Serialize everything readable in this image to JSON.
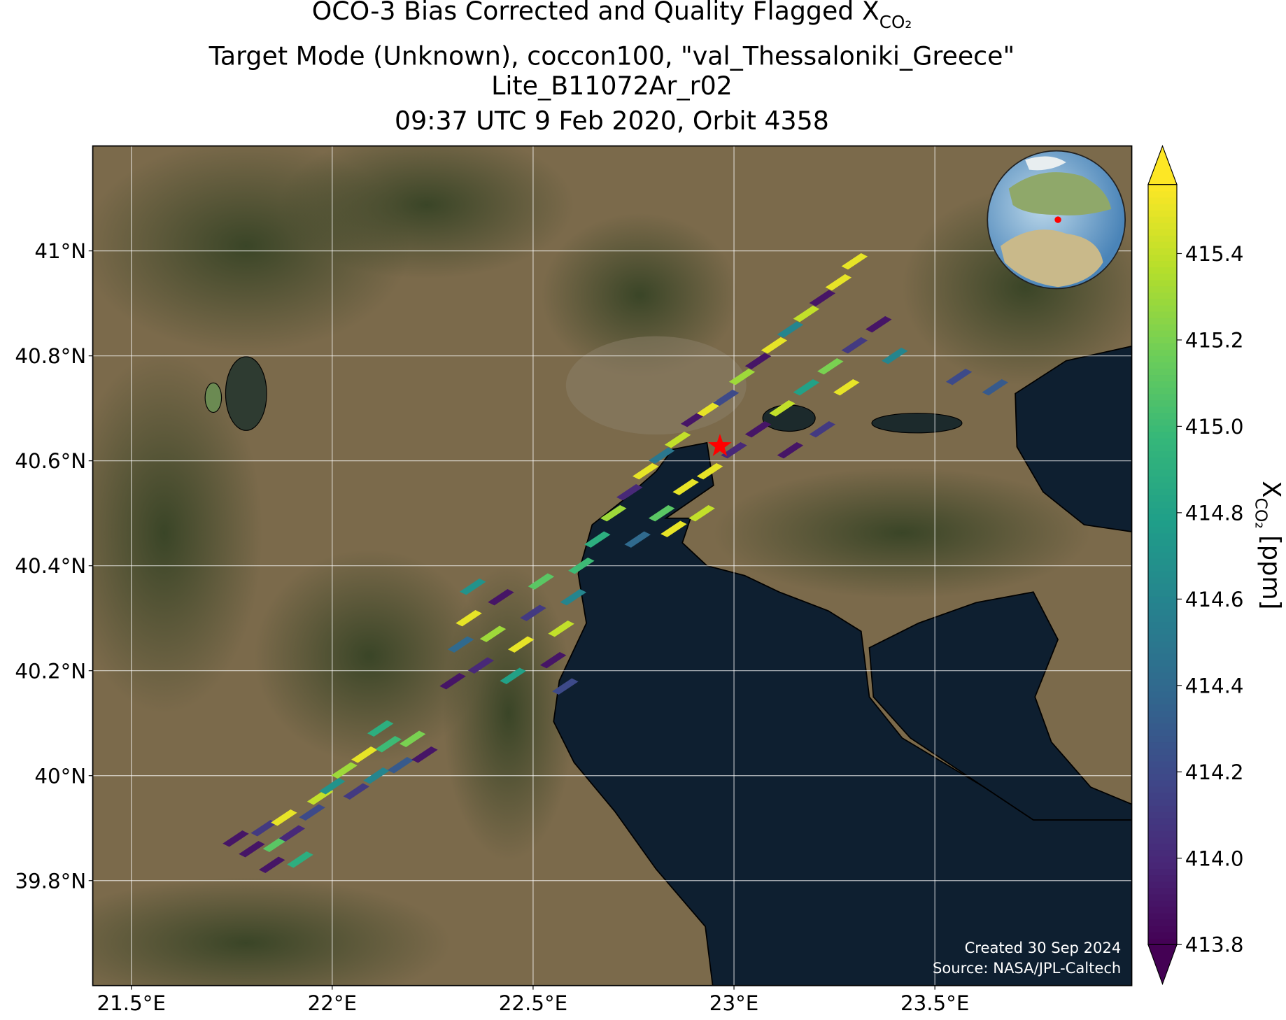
{
  "chart_data": {
    "type": "swath-map",
    "title": {
      "text": "OCO-3 Bias Corrected and Quality Flagged X",
      "subscript": "CO₂"
    },
    "subtitle_lines": [
      "Target Mode (Unknown), coccon100, \"val_Thessaloniki_Greece\"",
      "Lite_B11072Ar_r02",
      "09:37 UTC 9 Feb 2020, Orbit 4358"
    ],
    "xlim": [
      21.404,
      23.99
    ],
    "ylim": [
      39.6,
      41.2
    ],
    "xticks": [
      {
        "value": 21.5,
        "label": "21.5°E"
      },
      {
        "value": 22,
        "label": "22°E"
      },
      {
        "value": 22.5,
        "label": "22.5°E"
      },
      {
        "value": 23,
        "label": "23°E"
      },
      {
        "value": 23.5,
        "label": "23.5°E"
      }
    ],
    "yticks": [
      {
        "value": 39.8,
        "label": "39.8°N"
      },
      {
        "value": 40,
        "label": "40°N"
      },
      {
        "value": 40.2,
        "label": "40.2°N"
      },
      {
        "value": 40.4,
        "label": "40.4°N"
      },
      {
        "value": 40.6,
        "label": "40.6°N"
      },
      {
        "value": 40.8,
        "label": "40.8°N"
      },
      {
        "value": 41,
        "label": "41°N"
      }
    ],
    "grid": true,
    "colormap": [
      "#440154",
      "#482878",
      "#3e4989",
      "#31688e",
      "#26828e",
      "#1f9e89",
      "#35b779",
      "#6ece58",
      "#b5de2b",
      "#fde725"
    ],
    "clim": [
      413.8,
      415.56
    ],
    "colorbar_ticks": [
      {
        "value": 413.8,
        "label": "413.8"
      },
      {
        "value": 414,
        "label": "414.0"
      },
      {
        "value": 414.2,
        "label": "414.2"
      },
      {
        "value": 414.4,
        "label": "414.4"
      },
      {
        "value": 414.6,
        "label": "414.6"
      },
      {
        "value": 414.8,
        "label": "414.8"
      },
      {
        "value": 415,
        "label": "415.0"
      },
      {
        "value": 415.2,
        "label": "415.2"
      },
      {
        "value": 415.4,
        "label": "415.4"
      }
    ],
    "colorbar_label": {
      "symbol": "X",
      "subscript": "CO₂",
      "unit": "[ppm]"
    },
    "site": {
      "lon": 22.965,
      "lat": 40.628,
      "color": "#ff0000"
    },
    "soundings": {
      "lon": [
        21.76,
        21.8,
        21.83,
        21.86,
        21.88,
        21.9,
        21.92,
        21.95,
        21.85,
        21.97,
        22.0,
        22.03,
        22.06,
        22.08,
        22.11,
        22.14,
        22.17,
        22.2,
        22.23,
        22.12,
        22.3,
        22.32,
        22.34,
        22.37,
        22.4,
        22.42,
        22.45,
        22.47,
        22.5,
        22.52,
        22.55,
        22.57,
        22.6,
        22.62,
        22.58,
        22.35,
        22.66,
        22.7,
        22.74,
        22.78,
        22.82,
        22.86,
        22.9,
        22.94,
        22.98,
        23.02,
        23.06,
        23.1,
        23.14,
        23.18,
        23.22,
        23.26,
        23.3,
        22.76,
        22.82,
        22.88,
        22.94,
        23.0,
        23.06,
        23.12,
        23.18,
        23.24,
        23.3,
        23.36,
        23.28,
        23.22,
        23.14,
        22.92,
        22.85,
        23.4,
        23.56,
        23.65
      ],
      "lat": [
        39.88,
        39.86,
        39.9,
        39.87,
        39.92,
        39.89,
        39.84,
        39.93,
        39.83,
        39.96,
        39.98,
        40.01,
        39.97,
        40.04,
        40.0,
        40.06,
        40.02,
        40.07,
        40.04,
        40.09,
        40.18,
        40.25,
        40.3,
        40.21,
        40.27,
        40.34,
        40.19,
        40.25,
        40.31,
        40.37,
        40.22,
        40.28,
        40.34,
        40.4,
        40.17,
        40.36,
        40.45,
        40.5,
        40.54,
        40.58,
        40.61,
        40.64,
        40.68,
        40.7,
        40.72,
        40.76,
        40.79,
        40.82,
        40.85,
        40.88,
        40.91,
        40.94,
        40.98,
        40.45,
        40.5,
        40.55,
        40.58,
        40.62,
        40.66,
        40.7,
        40.74,
        40.78,
        40.82,
        40.86,
        40.74,
        40.66,
        40.62,
        40.5,
        40.47,
        40.8,
        40.76,
        40.74
      ],
      "xco2": [
        413.9,
        413.9,
        414.1,
        415.1,
        415.5,
        414.0,
        414.9,
        414.2,
        413.9,
        415.4,
        414.7,
        415.3,
        414.1,
        415.5,
        414.6,
        415.0,
        414.3,
        415.2,
        413.9,
        414.9,
        413.9,
        414.4,
        415.5,
        414.0,
        415.3,
        413.9,
        414.8,
        415.5,
        414.1,
        415.1,
        413.9,
        415.4,
        414.6,
        415.0,
        414.2,
        414.7,
        414.9,
        415.3,
        414.0,
        415.5,
        414.5,
        415.4,
        413.9,
        415.5,
        414.2,
        415.3,
        413.9,
        415.5,
        414.6,
        415.4,
        413.9,
        415.5,
        415.5,
        414.4,
        415.1,
        415.5,
        415.5,
        414.0,
        413.9,
        415.4,
        414.8,
        415.2,
        414.1,
        413.9,
        415.5,
        414.1,
        413.9,
        415.4,
        415.5,
        414.6,
        414.2,
        414.3
      ]
    },
    "credits": [
      "Created 30 Sep 2024",
      "Source: NASA/JPL-Caltech"
    ]
  }
}
